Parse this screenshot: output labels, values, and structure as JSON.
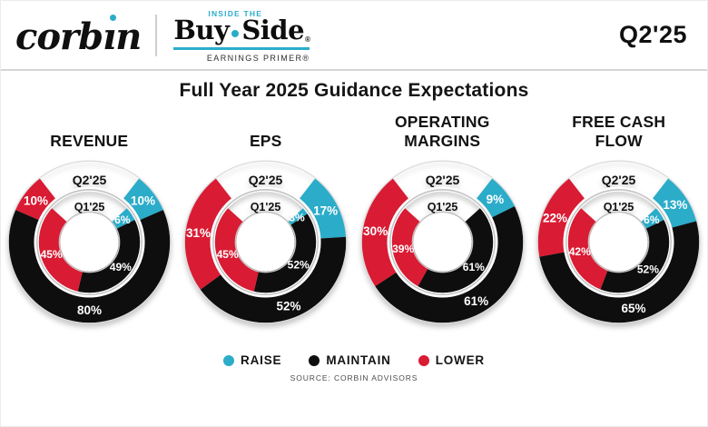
{
  "header": {
    "brand": "corbin",
    "buyside": {
      "kicker": "INSIDE THE",
      "word1": "Buy",
      "word2": "Side",
      "reg": "®",
      "tagline": "EARNINGS PRIMER®"
    },
    "period": "Q2'25"
  },
  "title": "Full Year 2025 Guidance Expectations",
  "colors": {
    "raise": "#2BACC9",
    "maintain": "#0E0E0E",
    "lower": "#D91B33",
    "ring_stroke": "#C3C3C3",
    "outer_edge": "#DADADA"
  },
  "legend": [
    {
      "label": "RAISE",
      "key": "raise"
    },
    {
      "label": "MAINTAIN",
      "key": "maintain"
    },
    {
      "label": "LOWER",
      "key": "lower"
    }
  ],
  "source": "SOURCE: CORBIN ADVISORS",
  "chart_data": [
    {
      "type": "donut",
      "title": "REVENUE",
      "rings": [
        {
          "name": "Q2'25",
          "position": "outer",
          "values": {
            "raise": 10,
            "maintain": 80,
            "lower": 10
          }
        },
        {
          "name": "Q1'25",
          "position": "inner",
          "values": {
            "raise": 6,
            "maintain": 49,
            "lower": 45
          }
        }
      ]
    },
    {
      "type": "donut",
      "title": "EPS",
      "rings": [
        {
          "name": "Q2'25",
          "position": "outer",
          "values": {
            "raise": 17,
            "maintain": 52,
            "lower": 31
          }
        },
        {
          "name": "Q1'25",
          "position": "inner",
          "values": {
            "raise": 3,
            "maintain": 52,
            "lower": 45
          }
        }
      ]
    },
    {
      "type": "donut",
      "title": "OPERATING MARGINS",
      "rings": [
        {
          "name": "Q2'25",
          "position": "outer",
          "values": {
            "raise": 9,
            "maintain": 61,
            "lower": 30
          }
        },
        {
          "name": "Q1'25",
          "position": "inner",
          "values": {
            "raise": 0,
            "maintain": 61,
            "lower": 39
          }
        }
      ]
    },
    {
      "type": "donut",
      "title": "FREE CASH FLOW",
      "rings": [
        {
          "name": "Q2'25",
          "position": "outer",
          "values": {
            "raise": 13,
            "maintain": 65,
            "lower": 22
          }
        },
        {
          "name": "Q1'25",
          "position": "inner",
          "values": {
            "raise": 6,
            "maintain": 52,
            "lower": 42
          }
        }
      ]
    }
  ]
}
